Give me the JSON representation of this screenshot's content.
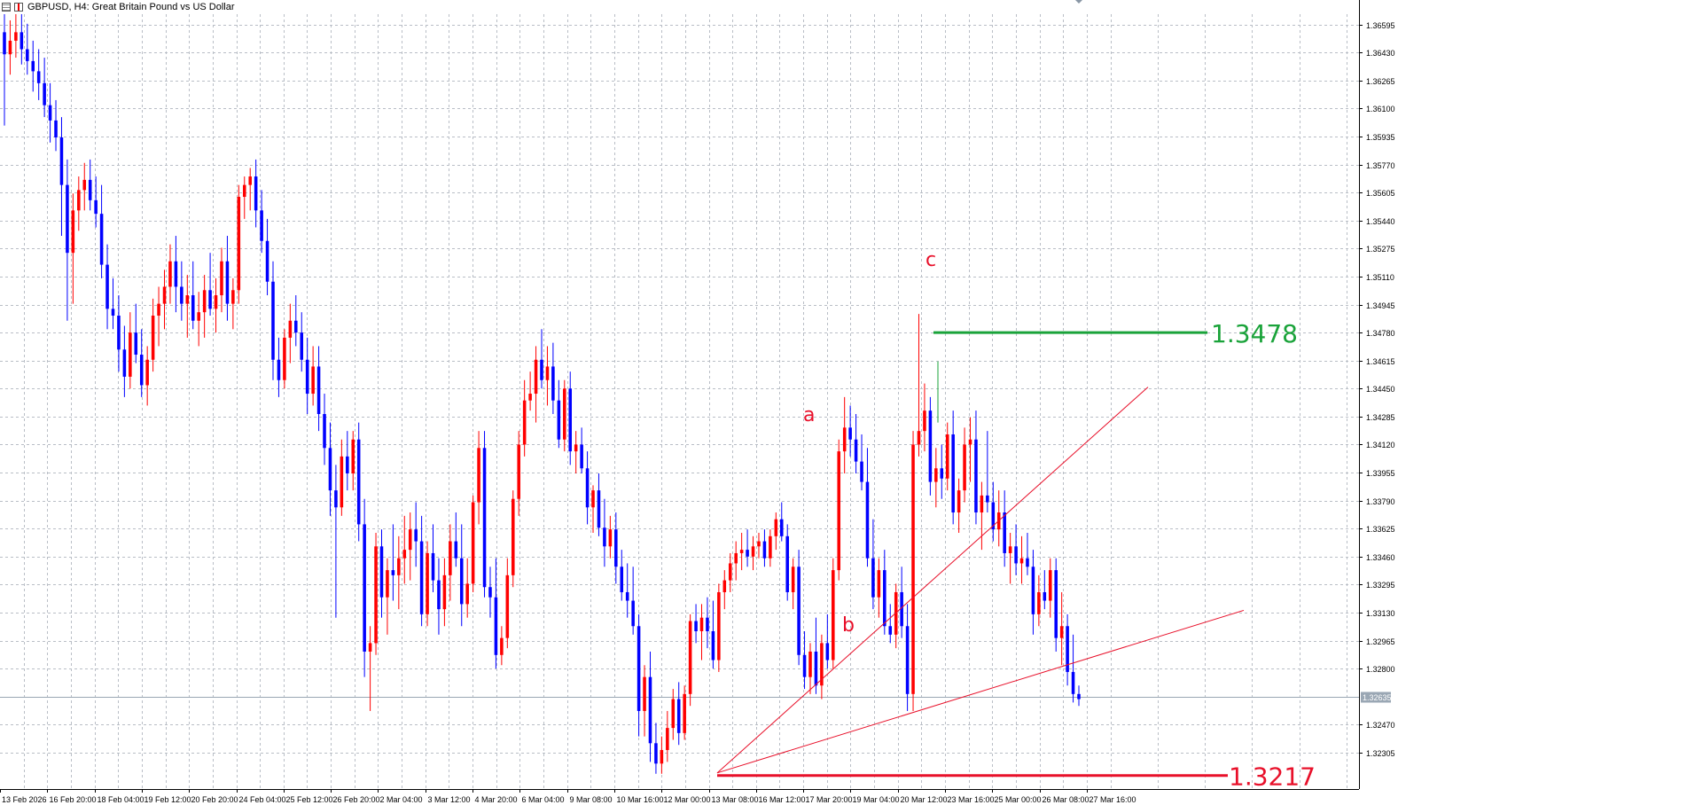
{
  "window": {
    "title": "GBPUSD, H4:  Great Britain Pound vs US Dollar",
    "icons": [
      "chart-grid-icon",
      "candlestick-icon"
    ]
  },
  "colors": {
    "bull": "#ff0000",
    "bear": "#0000ff",
    "grid": "#b9bec6",
    "axis_text": "#000000",
    "level_high": "#1aa33a",
    "level_low": "#e8102a",
    "trend_line": "#e8102a",
    "current_price_line": "#9aa7b4",
    "current_price_label_bg": "#9aa7b4"
  },
  "chart_data": {
    "type": "candlestick",
    "symbol": "GBPUSD",
    "timeframe": "H4",
    "grid": true,
    "ylim": [
      1.3209,
      1.3674
    ],
    "y_ticks": [
      "1.36595",
      "1.36430",
      "1.36265",
      "1.36100",
      "1.35935",
      "1.35770",
      "1.35605",
      "1.35440",
      "1.35275",
      "1.35110",
      "1.34945",
      "1.34780",
      "1.34615",
      "1.34450",
      "1.34285",
      "1.34120",
      "1.33955",
      "1.33790",
      "1.33625",
      "1.33460",
      "1.33295",
      "1.33130",
      "1.32965",
      "1.32800",
      "1.32470",
      "1.32305"
    ],
    "x_ticks": [
      "13 Feb 2026",
      "16 Feb 20:00",
      "18 Feb 04:00",
      "19 Feb 12:00",
      "20 Feb 20:00",
      "24 Feb 04:00",
      "25 Feb 12:00",
      "26 Feb 20:00",
      "2 Mar 04:00",
      "3 Mar 12:00",
      "4 Mar 20:00",
      "6 Mar 04:00",
      "9 Mar 08:00",
      "10 Mar 16:00",
      "12 Mar 00:00",
      "13 Mar 08:00",
      "16 Mar 12:00",
      "17 Mar 20:00",
      "19 Mar 04:00",
      "20 Mar 12:00",
      "23 Mar 16:00",
      "25 Mar 00:00",
      "26 Mar 08:00",
      "27 Mar 16:00"
    ],
    "current_price": "1.32635",
    "levels": [
      {
        "label": "1.3478",
        "price": 1.3478,
        "color": "#1aa33a"
      },
      {
        "label": "1.3217",
        "price": 1.3217,
        "color": "#e8102a"
      }
    ],
    "wave_labels": [
      {
        "label": "a",
        "price": 1.3383
      },
      {
        "label": "b",
        "price": 1.323
      },
      {
        "label": "c",
        "price": 1.3489
      }
    ],
    "trendlines": [
      {
        "from": [
          809,
          1.32185
        ],
        "to": [
          1295,
          1.34459
        ]
      },
      {
        "from": [
          809,
          1.32185
        ],
        "to": [
          1403,
          1.33143
        ]
      }
    ],
    "candles": [
      [
        1.3655,
        1.3666,
        1.36,
        1.3642
      ],
      [
        1.3642,
        1.3662,
        1.363,
        1.365
      ],
      [
        1.365,
        1.3672,
        1.364,
        1.3655
      ],
      [
        1.3655,
        1.3668,
        1.3636,
        1.3645
      ],
      [
        1.3645,
        1.366,
        1.363,
        1.3638
      ],
      [
        1.3638,
        1.365,
        1.362,
        1.3632
      ],
      [
        1.3632,
        1.3645,
        1.3615,
        1.3625
      ],
      [
        1.3625,
        1.364,
        1.3605,
        1.3612
      ],
      [
        1.3612,
        1.3625,
        1.359,
        1.3603
      ],
      [
        1.3603,
        1.3615,
        1.3585,
        1.3593
      ],
      [
        1.3593,
        1.3605,
        1.3535,
        1.3565
      ],
      [
        1.3565,
        1.358,
        1.3485,
        1.3525
      ],
      [
        1.3525,
        1.356,
        1.3495,
        1.355
      ],
      [
        1.355,
        1.357,
        1.3538,
        1.3562
      ],
      [
        1.3562,
        1.3578,
        1.355,
        1.3568
      ],
      [
        1.3568,
        1.358,
        1.355,
        1.3556
      ],
      [
        1.3556,
        1.357,
        1.354,
        1.3548
      ],
      [
        1.3548,
        1.3565,
        1.351,
        1.3518
      ],
      [
        1.3518,
        1.353,
        1.348,
        1.3492
      ],
      [
        1.3492,
        1.351,
        1.348,
        1.3488
      ],
      [
        1.3488,
        1.35,
        1.3455,
        1.3468
      ],
      [
        1.3468,
        1.3482,
        1.344,
        1.3452
      ],
      [
        1.3452,
        1.349,
        1.3445,
        1.3478
      ],
      [
        1.3478,
        1.3495,
        1.346,
        1.3465
      ],
      [
        1.3465,
        1.348,
        1.344,
        1.3447
      ],
      [
        1.3447,
        1.347,
        1.3435,
        1.3462
      ],
      [
        1.3462,
        1.3498,
        1.3455,
        1.3488
      ],
      [
        1.3488,
        1.3505,
        1.347,
        1.3495
      ],
      [
        1.3495,
        1.3515,
        1.348,
        1.3505
      ],
      [
        1.3505,
        1.353,
        1.3495,
        1.352
      ],
      [
        1.352,
        1.3535,
        1.349,
        1.3505
      ],
      [
        1.3505,
        1.352,
        1.3485,
        1.3495
      ],
      [
        1.3495,
        1.3512,
        1.3475,
        1.35
      ],
      [
        1.35,
        1.352,
        1.348,
        1.3485
      ],
      [
        1.3485,
        1.3502,
        1.347,
        1.349
      ],
      [
        1.349,
        1.3512,
        1.3475,
        1.3503
      ],
      [
        1.3503,
        1.3525,
        1.3488,
        1.3492
      ],
      [
        1.3492,
        1.351,
        1.3478,
        1.35
      ],
      [
        1.35,
        1.3528,
        1.349,
        1.352
      ],
      [
        1.352,
        1.3535,
        1.3485,
        1.3495
      ],
      [
        1.3495,
        1.351,
        1.348,
        1.3503
      ],
      [
        1.3503,
        1.3565,
        1.3495,
        1.3558
      ],
      [
        1.3558,
        1.357,
        1.3545,
        1.3565
      ],
      [
        1.3565,
        1.3575,
        1.355,
        1.357
      ],
      [
        1.357,
        1.358,
        1.354,
        1.355
      ],
      [
        1.355,
        1.3562,
        1.3525,
        1.3532
      ],
      [
        1.3532,
        1.3545,
        1.35,
        1.3508
      ],
      [
        1.3508,
        1.352,
        1.345,
        1.3462
      ],
      [
        1.3462,
        1.3475,
        1.344,
        1.345
      ],
      [
        1.345,
        1.348,
        1.3445,
        1.3475
      ],
      [
        1.3475,
        1.3495,
        1.346,
        1.3485
      ],
      [
        1.3485,
        1.35,
        1.347,
        1.3478
      ],
      [
        1.3478,
        1.349,
        1.3455,
        1.3462
      ],
      [
        1.3462,
        1.3475,
        1.343,
        1.3442
      ],
      [
        1.3442,
        1.347,
        1.3435,
        1.3458
      ],
      [
        1.3458,
        1.347,
        1.342,
        1.343
      ],
      [
        1.343,
        1.3442,
        1.34,
        1.341
      ],
      [
        1.341,
        1.3425,
        1.337,
        1.3385
      ],
      [
        1.3385,
        1.34,
        1.331,
        1.3375
      ],
      [
        1.3375,
        1.3415,
        1.337,
        1.3405
      ],
      [
        1.3405,
        1.342,
        1.3385,
        1.3395
      ],
      [
        1.3395,
        1.342,
        1.3385,
        1.3415
      ],
      [
        1.3415,
        1.3425,
        1.3355,
        1.3365
      ],
      [
        1.3365,
        1.338,
        1.3275,
        1.329
      ],
      [
        1.329,
        1.3305,
        1.3255,
        1.3295
      ],
      [
        1.3295,
        1.336,
        1.3288,
        1.3352
      ],
      [
        1.3352,
        1.3362,
        1.331,
        1.3322
      ],
      [
        1.3322,
        1.3345,
        1.33,
        1.3338
      ],
      [
        1.3338,
        1.3365,
        1.332,
        1.3335
      ],
      [
        1.3335,
        1.3358,
        1.3315,
        1.3345
      ],
      [
        1.3345,
        1.337,
        1.333,
        1.335
      ],
      [
        1.335,
        1.3372,
        1.3332,
        1.3362
      ],
      [
        1.3362,
        1.3378,
        1.334,
        1.3355
      ],
      [
        1.3355,
        1.337,
        1.3305,
        1.3312
      ],
      [
        1.3312,
        1.3355,
        1.3305,
        1.3348
      ],
      [
        1.3348,
        1.3365,
        1.3325,
        1.3332
      ],
      [
        1.3332,
        1.3345,
        1.33,
        1.3315
      ],
      [
        1.3315,
        1.3345,
        1.3305,
        1.3335
      ],
      [
        1.3335,
        1.3365,
        1.332,
        1.3355
      ],
      [
        1.3355,
        1.3372,
        1.334,
        1.3345
      ],
      [
        1.3345,
        1.3365,
        1.3305,
        1.3318
      ],
      [
        1.3318,
        1.3345,
        1.331,
        1.333
      ],
      [
        1.333,
        1.3382,
        1.3325,
        1.3378
      ],
      [
        1.3378,
        1.342,
        1.3365,
        1.341
      ],
      [
        1.341,
        1.342,
        1.3322,
        1.3328
      ],
      [
        1.3328,
        1.334,
        1.331,
        1.3322
      ],
      [
        1.3322,
        1.3345,
        1.328,
        1.3288
      ],
      [
        1.3288,
        1.3305,
        1.3282,
        1.3298
      ],
      [
        1.3298,
        1.3345,
        1.3292,
        1.3335
      ],
      [
        1.3335,
        1.3385,
        1.3328,
        1.338
      ],
      [
        1.338,
        1.342,
        1.337,
        1.3412
      ],
      [
        1.3412,
        1.345,
        1.3405,
        1.3438
      ],
      [
        1.3438,
        1.3455,
        1.3432,
        1.3442
      ],
      [
        1.3442,
        1.347,
        1.3425,
        1.3462
      ],
      [
        1.3462,
        1.348,
        1.3445,
        1.345
      ],
      [
        1.345,
        1.347,
        1.3435,
        1.3458
      ],
      [
        1.3458,
        1.3472,
        1.343,
        1.3438
      ],
      [
        1.3438,
        1.345,
        1.341,
        1.3415
      ],
      [
        1.3415,
        1.345,
        1.3408,
        1.3445
      ],
      [
        1.3445,
        1.3455,
        1.34,
        1.3408
      ],
      [
        1.3408,
        1.342,
        1.3395,
        1.3412
      ],
      [
        1.3412,
        1.3422,
        1.3395,
        1.3398
      ],
      [
        1.3398,
        1.3408,
        1.3365,
        1.3375
      ],
      [
        1.3375,
        1.3388,
        1.336,
        1.3385
      ],
      [
        1.3385,
        1.3395,
        1.3358,
        1.3363
      ],
      [
        1.3363,
        1.338,
        1.334,
        1.3352
      ],
      [
        1.3352,
        1.337,
        1.3345,
        1.3362
      ],
      [
        1.3362,
        1.3372,
        1.333,
        1.334
      ],
      [
        1.334,
        1.335,
        1.332,
        1.3325
      ],
      [
        1.3325,
        1.3342,
        1.331,
        1.332
      ],
      [
        1.332,
        1.334,
        1.33,
        1.3305
      ],
      [
        1.3305,
        1.3312,
        1.324,
        1.3255
      ],
      [
        1.3255,
        1.3282,
        1.324,
        1.3275
      ],
      [
        1.3275,
        1.329,
        1.3225,
        1.3236
      ],
      [
        1.3236,
        1.3248,
        1.3218,
        1.3224
      ],
      [
        1.3224,
        1.324,
        1.3218,
        1.3232
      ],
      [
        1.3232,
        1.3255,
        1.3225,
        1.3245
      ],
      [
        1.3245,
        1.3268,
        1.3238,
        1.3262
      ],
      [
        1.3262,
        1.3272,
        1.3235,
        1.3242
      ],
      [
        1.3242,
        1.327,
        1.3238,
        1.3265
      ],
      [
        1.3265,
        1.3312,
        1.3258,
        1.3308
      ],
      [
        1.3308,
        1.3318,
        1.3295,
        1.3302
      ],
      [
        1.3302,
        1.3318,
        1.3285,
        1.331
      ],
      [
        1.331,
        1.3322,
        1.3292,
        1.3302
      ],
      [
        1.3302,
        1.332,
        1.328,
        1.3285
      ],
      [
        1.3285,
        1.333,
        1.3278,
        1.3325
      ],
      [
        1.3325,
        1.3338,
        1.3315,
        1.3332
      ],
      [
        1.3332,
        1.3348,
        1.3325,
        1.3342
      ],
      [
        1.3342,
        1.3355,
        1.3332,
        1.3348
      ],
      [
        1.3348,
        1.336,
        1.3338,
        1.335
      ],
      [
        1.335,
        1.3362,
        1.334,
        1.3346
      ],
      [
        1.3346,
        1.3358,
        1.3338,
        1.3352
      ],
      [
        1.3352,
        1.336,
        1.3345,
        1.3355
      ],
      [
        1.3355,
        1.3362,
        1.334,
        1.3345
      ],
      [
        1.3345,
        1.3362,
        1.334,
        1.3358
      ],
      [
        1.3358,
        1.3372,
        1.335,
        1.3368
      ],
      [
        1.3368,
        1.3378,
        1.3355,
        1.3358
      ],
      [
        1.3358,
        1.3365,
        1.332,
        1.3325
      ],
      [
        1.3325,
        1.3345,
        1.3315,
        1.334
      ],
      [
        1.334,
        1.335,
        1.3282,
        1.3288
      ],
      [
        1.3288,
        1.3302,
        1.3268,
        1.3275
      ],
      [
        1.3275,
        1.3295,
        1.3265,
        1.329
      ],
      [
        1.329,
        1.331,
        1.3265,
        1.327
      ],
      [
        1.327,
        1.33,
        1.3262,
        1.3295
      ],
      [
        1.3295,
        1.3312,
        1.328,
        1.3285
      ],
      [
        1.3285,
        1.3345,
        1.328,
        1.3338
      ],
      [
        1.3338,
        1.3415,
        1.3332,
        1.3408
      ],
      [
        1.3408,
        1.344,
        1.3395,
        1.3422
      ],
      [
        1.3422,
        1.3435,
        1.3405,
        1.3415
      ],
      [
        1.3415,
        1.343,
        1.3395,
        1.3402
      ],
      [
        1.3402,
        1.3418,
        1.3385,
        1.339
      ],
      [
        1.339,
        1.341,
        1.334,
        1.3345
      ],
      [
        1.3345,
        1.3368,
        1.3315,
        1.3322
      ],
      [
        1.3322,
        1.3345,
        1.331,
        1.3338
      ],
      [
        1.3338,
        1.335,
        1.33,
        1.3305
      ],
      [
        1.3305,
        1.3318,
        1.3295,
        1.33
      ],
      [
        1.33,
        1.333,
        1.3292,
        1.3325
      ],
      [
        1.3325,
        1.334,
        1.3298,
        1.3305
      ],
      [
        1.3305,
        1.3318,
        1.3255,
        1.3265
      ],
      [
        1.3265,
        1.342,
        1.3255,
        1.3412
      ],
      [
        1.3412,
        1.3489,
        1.3405,
        1.342
      ],
      [
        1.342,
        1.3448,
        1.3408,
        1.3432
      ],
      [
        1.3432,
        1.344,
        1.3382,
        1.339
      ],
      [
        1.339,
        1.341,
        1.3375,
        1.3398
      ],
      [
        1.3398,
        1.3412,
        1.338,
        1.3392
      ],
      [
        1.3392,
        1.3425,
        1.3385,
        1.3418
      ],
      [
        1.3418,
        1.3432,
        1.3365,
        1.3372
      ],
      [
        1.3372,
        1.3392,
        1.336,
        1.3385
      ],
      [
        1.3385,
        1.3422,
        1.3378,
        1.3412
      ],
      [
        1.3412,
        1.3428,
        1.339,
        1.3415
      ],
      [
        1.3415,
        1.3432,
        1.3365,
        1.3372
      ],
      [
        1.3372,
        1.339,
        1.335,
        1.3382
      ],
      [
        1.3382,
        1.342,
        1.3372,
        1.3378
      ],
      [
        1.3378,
        1.339,
        1.3355,
        1.3362
      ],
      [
        1.3362,
        1.3385,
        1.3352,
        1.3372
      ],
      [
        1.3372,
        1.3385,
        1.334,
        1.3348
      ],
      [
        1.3348,
        1.336,
        1.333,
        1.3352
      ],
      [
        1.3352,
        1.3365,
        1.3335,
        1.3342
      ],
      [
        1.3342,
        1.3358,
        1.333,
        1.3345
      ],
      [
        1.3345,
        1.336,
        1.3335,
        1.334
      ],
      [
        1.334,
        1.335,
        1.33,
        1.3312
      ],
      [
        1.3312,
        1.3335,
        1.3305,
        1.3325
      ],
      [
        1.3325,
        1.3338,
        1.3315,
        1.332
      ],
      [
        1.332,
        1.3345,
        1.331,
        1.3338
      ],
      [
        1.3338,
        1.3345,
        1.329,
        1.3298
      ],
      [
        1.3298,
        1.3325,
        1.3282,
        1.3305
      ],
      [
        1.3305,
        1.3312,
        1.327,
        1.3278
      ],
      [
        1.3278,
        1.33,
        1.326,
        1.3265
      ],
      [
        1.3265,
        1.327,
        1.3258,
        1.3262
      ]
    ]
  }
}
